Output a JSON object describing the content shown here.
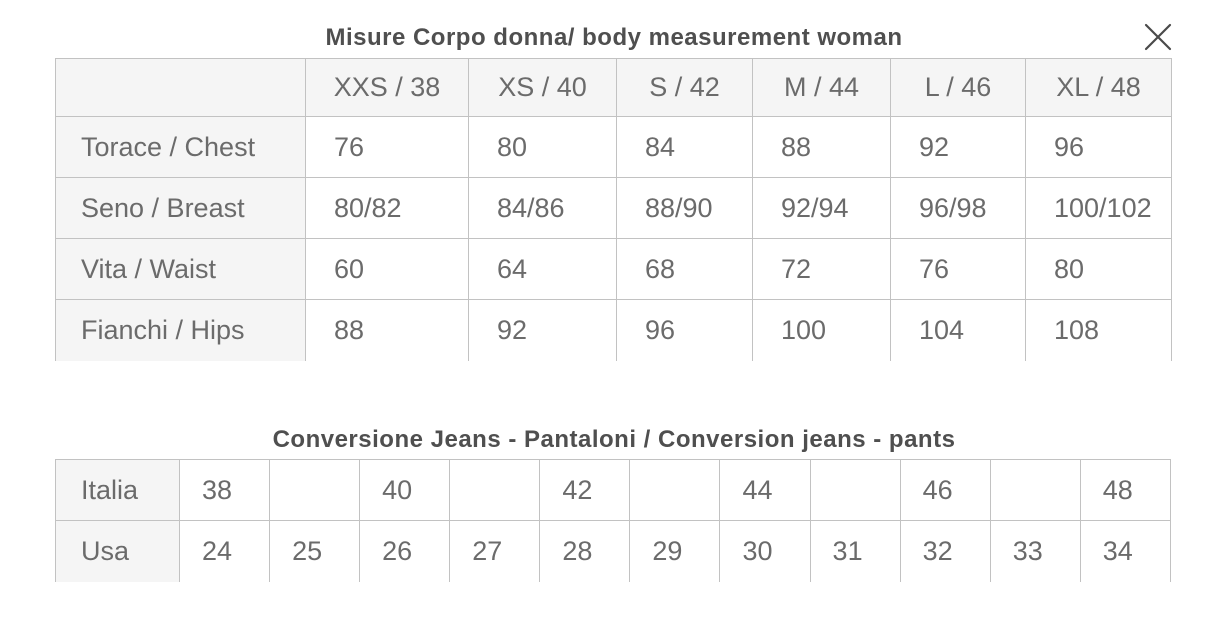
{
  "modal": {
    "close_icon_name": "close-icon"
  },
  "sections": [
    {
      "title": "Misure Corpo donna/ body measurement woman",
      "table": {
        "column_headers": [
          "",
          "XXS / 38",
          "XS / 40",
          "S / 42",
          "M / 44",
          "L / 46",
          "XL / 48"
        ],
        "rows": [
          {
            "label": "Torace / Chest",
            "values": [
              "76",
              "80",
              "84",
              "88",
              "92",
              "96"
            ]
          },
          {
            "label": "Seno / Breast",
            "values": [
              "80/82",
              "84/86",
              "88/90",
              "92/94",
              "96/98",
              "100/102"
            ]
          },
          {
            "label": "Vita / Waist",
            "values": [
              "60",
              "64",
              "68",
              "72",
              "76",
              "80"
            ]
          },
          {
            "label": "Fianchi / Hips",
            "values": [
              "88",
              "92",
              "96",
              "100",
              "104",
              "108"
            ]
          }
        ]
      }
    },
    {
      "title": "Conversione Jeans - Pantaloni / Conversion jeans - pants",
      "table": {
        "rows": [
          {
            "label": "Italia",
            "values": [
              "38",
              "",
              "40",
              "",
              "42",
              "",
              "44",
              "",
              "46",
              "",
              "48"
            ]
          },
          {
            "label": "Usa",
            "values": [
              "24",
              "25",
              "26",
              "27",
              "28",
              "29",
              "30",
              "31",
              "32",
              "33",
              "34"
            ]
          }
        ]
      }
    }
  ],
  "colors": {
    "title_text": "#4f4f4f",
    "cell_text": "#6b6b6b",
    "border": "#c2c2c2",
    "shaded_cell_bg": "#f5f5f5",
    "background": "#ffffff",
    "close_icon": "#4a4a4a"
  }
}
